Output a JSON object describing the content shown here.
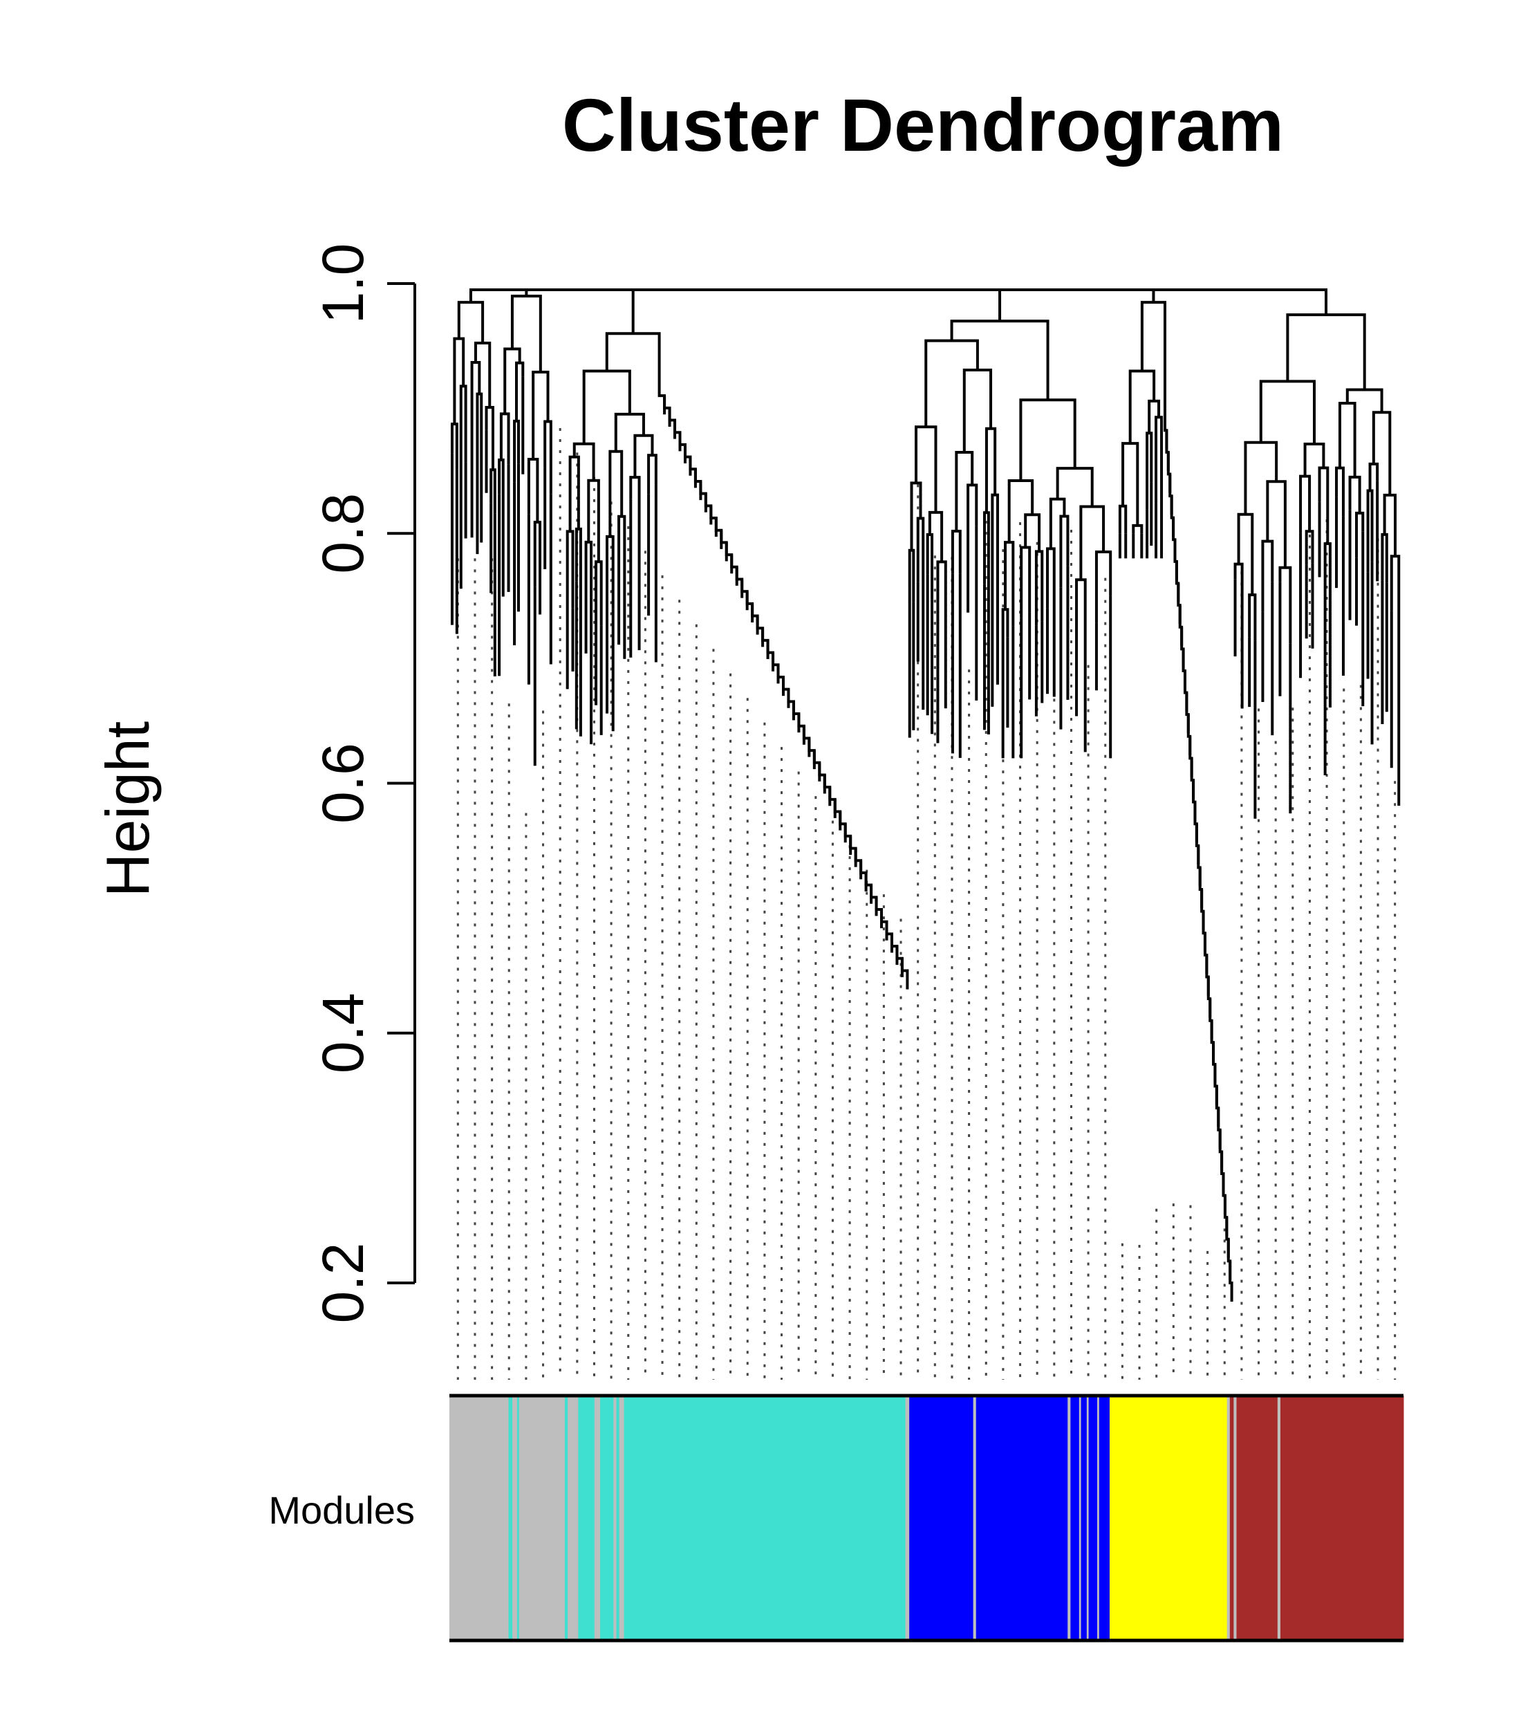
{
  "chart_data": {
    "type": "dendrogram",
    "title": "Cluster Dendrogram",
    "ylabel": "Height",
    "xlabel": "",
    "ylim": [
      0.2,
      1.0
    ],
    "yticks": [
      "0.2",
      "0.4",
      "0.6",
      "0.8",
      "1.0"
    ],
    "yticks_values": [
      0.2,
      0.4,
      0.6,
      0.8,
      1.0
    ],
    "color_bar_label": "Modules",
    "modules": [
      {
        "name": "grey",
        "color": "#bebebe",
        "share": 0.18
      },
      {
        "name": "turquoise",
        "color": "#40e0d0",
        "share": 0.3
      },
      {
        "name": "blue",
        "color": "#0000ff",
        "share": 0.21
      },
      {
        "name": "yellow",
        "color": "#ffff00",
        "share": 0.12
      },
      {
        "name": "brown",
        "color": "#a52a2a",
        "share": 0.19
      }
    ],
    "module_bands": [
      {
        "color": "#bebebe",
        "from": 0.0,
        "to": 0.062
      },
      {
        "color": "#40e0d0",
        "from": 0.062,
        "to": 0.066
      },
      {
        "color": "#bebebe",
        "from": 0.066,
        "to": 0.071
      },
      {
        "color": "#40e0d0",
        "from": 0.071,
        "to": 0.073
      },
      {
        "color": "#bebebe",
        "from": 0.073,
        "to": 0.121
      },
      {
        "color": "#40e0d0",
        "from": 0.121,
        "to": 0.124
      },
      {
        "color": "#bebebe",
        "from": 0.124,
        "to": 0.135
      },
      {
        "color": "#40e0d0",
        "from": 0.135,
        "to": 0.152
      },
      {
        "color": "#bebebe",
        "from": 0.152,
        "to": 0.158
      },
      {
        "color": "#40e0d0",
        "from": 0.158,
        "to": 0.172
      },
      {
        "color": "#bebebe",
        "from": 0.172,
        "to": 0.175
      },
      {
        "color": "#40e0d0",
        "from": 0.175,
        "to": 0.178
      },
      {
        "color": "#bebebe",
        "from": 0.178,
        "to": 0.183
      },
      {
        "color": "#40e0d0",
        "from": 0.183,
        "to": 0.478
      },
      {
        "color": "#bebebe",
        "from": 0.478,
        "to": 0.482
      },
      {
        "color": "#0000ff",
        "from": 0.482,
        "to": 0.549
      },
      {
        "color": "#bebebe",
        "from": 0.549,
        "to": 0.552
      },
      {
        "color": "#0000ff",
        "from": 0.552,
        "to": 0.648
      },
      {
        "color": "#bebebe",
        "from": 0.648,
        "to": 0.651
      },
      {
        "color": "#0000ff",
        "from": 0.651,
        "to": 0.66
      },
      {
        "color": "#bebebe",
        "from": 0.66,
        "to": 0.662
      },
      {
        "color": "#0000ff",
        "from": 0.662,
        "to": 0.668
      },
      {
        "color": "#bebebe",
        "from": 0.668,
        "to": 0.67
      },
      {
        "color": "#0000ff",
        "from": 0.67,
        "to": 0.679
      },
      {
        "color": "#bebebe",
        "from": 0.679,
        "to": 0.681
      },
      {
        "color": "#0000ff",
        "from": 0.681,
        "to": 0.692
      },
      {
        "color": "#ffff00",
        "from": 0.692,
        "to": 0.815
      },
      {
        "color": "#bebebe",
        "from": 0.815,
        "to": 0.818
      },
      {
        "color": "#a52a2a",
        "from": 0.818,
        "to": 0.822
      },
      {
        "color": "#bebebe",
        "from": 0.822,
        "to": 0.825
      },
      {
        "color": "#a52a2a",
        "from": 0.825,
        "to": 0.868
      },
      {
        "color": "#bebebe",
        "from": 0.868,
        "to": 0.871
      },
      {
        "color": "#a52a2a",
        "from": 0.871,
        "to": 1.0
      }
    ],
    "branches": [
      {
        "name": "grey-left",
        "range": [
          0.0,
          0.05
        ],
        "merge": 0.985,
        "floor": 0.55
      },
      {
        "name": "grey-mid",
        "range": [
          0.05,
          0.11
        ],
        "merge": 0.99,
        "floor": 0.45
      },
      {
        "name": "turquoise",
        "range": [
          0.12,
          0.48
        ],
        "merge": 0.96,
        "floor": 0.45
      },
      {
        "name": "blue",
        "range": [
          0.48,
          0.7
        ],
        "merge": 0.97,
        "floor": 0.62
      },
      {
        "name": "yellow",
        "range": [
          0.7,
          0.82
        ],
        "merge": 0.985,
        "floor": 0.2
      },
      {
        "name": "brown",
        "range": [
          0.82,
          1.0
        ],
        "merge": 0.975,
        "floor": 0.5
      }
    ]
  }
}
